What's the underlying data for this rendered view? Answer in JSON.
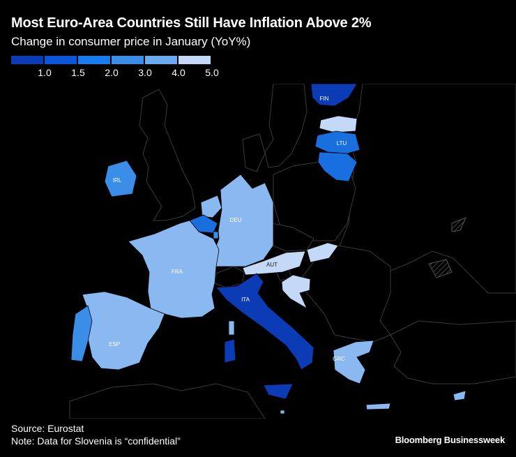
{
  "header": {
    "title": "Most Euro-Area Countries Still Have Inflation Above 2%",
    "subtitle": "Change in consumer price in January (YoY%)"
  },
  "legend": {
    "colors": [
      "#0b3bb5",
      "#0a55d9",
      "#1a7af0",
      "#3b8ee8",
      "#6aaaf0",
      "#c4d9f8"
    ],
    "ticks": [
      "1.0",
      "1.5",
      "2.0",
      "3.0",
      "4.0",
      "5.0"
    ]
  },
  "map": {
    "countries": [
      {
        "code": "FIN",
        "name": "Finland",
        "color": "#0b3bb5"
      },
      {
        "code": "EST",
        "name": "Estonia",
        "color": "#c4d9f8"
      },
      {
        "code": "LVA",
        "name": "Latvia",
        "color": "#1a6fe0"
      },
      {
        "code": "LTU",
        "name": "Lithuania",
        "color": "#1a6fe0"
      },
      {
        "code": "IRL",
        "name": "Ireland",
        "color": "#3b8ee8"
      },
      {
        "code": "NLD",
        "name": "Netherlands",
        "color": "#8ab8f0"
      },
      {
        "code": "BEL",
        "name": "Belgium",
        "color": "#1a6fe0"
      },
      {
        "code": "LUX",
        "name": "Luxembourg",
        "color": "#3b8ee8"
      },
      {
        "code": "DEU",
        "name": "Germany",
        "color": "#8ab8f0"
      },
      {
        "code": "FRA",
        "name": "France",
        "color": "#8ab8f0"
      },
      {
        "code": "AUT",
        "name": "Austria",
        "color": "#c4d9f8"
      },
      {
        "code": "SVK",
        "name": "Slovakia",
        "color": "#c4d9f8"
      },
      {
        "code": "HRV",
        "name": "Croatia",
        "color": "#c4d9f8"
      },
      {
        "code": "ITA",
        "name": "Italy",
        "color": "#0b3bb5"
      },
      {
        "code": "ESP",
        "name": "Spain",
        "color": "#8ab8f0"
      },
      {
        "code": "PRT",
        "name": "Portugal",
        "color": "#3b8ee8"
      },
      {
        "code": "GRC",
        "name": "Greece",
        "color": "#8ab8f0"
      },
      {
        "code": "CYP",
        "name": "Cyprus",
        "color": "#8ab8f0"
      },
      {
        "code": "MLT",
        "name": "Malta",
        "color": "#8ab8f0"
      }
    ]
  },
  "footer": {
    "source": "Source: Eurostat",
    "note": "Note: Data for Slovenia is “confidential”",
    "brand": "Bloomberg Businessweek"
  }
}
